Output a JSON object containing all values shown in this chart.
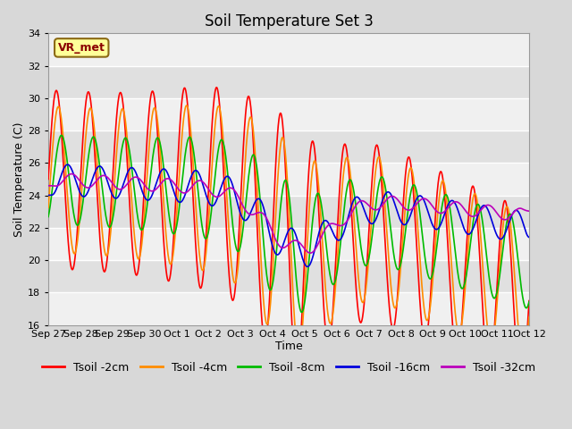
{
  "title": "Soil Temperature Set 3",
  "xlabel": "Time",
  "ylabel": "Soil Temperature (C)",
  "ylim": [
    16,
    34
  ],
  "yticks": [
    16,
    18,
    20,
    22,
    24,
    26,
    28,
    30,
    32,
    34
  ],
  "background_color": "#d8d8d8",
  "plot_bg_color": "#e8e8e8",
  "annotation_text": "VR_met",
  "annotation_box_color": "#ffff99",
  "annotation_text_color": "#8b0000",
  "grid_color": "#ffffff",
  "colors": {
    "Tsoil -2cm": "#ff0000",
    "Tsoil -4cm": "#ff8c00",
    "Tsoil -8cm": "#00bb00",
    "Tsoil -16cm": "#0000dd",
    "Tsoil -32cm": "#bb00bb"
  },
  "title_fontsize": 12,
  "label_fontsize": 9,
  "tick_fontsize": 8,
  "legend_fontsize": 9,
  "x_tick_labels": [
    "Sep 27",
    "Sep 28",
    "Sep 29",
    "Sep 30",
    "Oct 1",
    "Oct 2",
    "Oct 3",
    "Oct 4",
    "Oct 5",
    "Oct 6",
    "Oct 7",
    "Oct 8",
    "Oct 9",
    "Oct 10",
    "Oct 11",
    "Oct 12"
  ]
}
